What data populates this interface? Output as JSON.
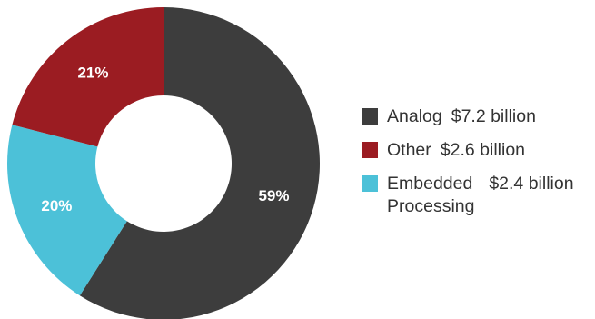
{
  "chart_data": {
    "type": "pie",
    "donut": true,
    "title": "",
    "legend_position": "right",
    "slices": [
      {
        "label": "Analog",
        "value_text": "$7.2 billion",
        "value": 7.2,
        "percent": 59,
        "percent_label": "59%",
        "color": "#3d3d3d"
      },
      {
        "label": "Embedded Processing",
        "value_text": "$2.4 billion",
        "value": 2.4,
        "percent": 20,
        "percent_label": "20%",
        "color": "#4cc1d8"
      },
      {
        "label": "Other",
        "value_text": "$2.6 billion",
        "value": 2.6,
        "percent": 21,
        "percent_label": "21%",
        "color": "#9b1c22"
      }
    ]
  },
  "legend": {
    "items": [
      {
        "label": "Analog",
        "value": "$7.2 billion",
        "color": "#3d3d3d"
      },
      {
        "label": "Other",
        "value": "$2.6 billion",
        "color": "#9b1c22"
      },
      {
        "label": "Embedded\nProcessing",
        "value": "$2.4 billion",
        "color": "#4cc1d8"
      }
    ]
  }
}
